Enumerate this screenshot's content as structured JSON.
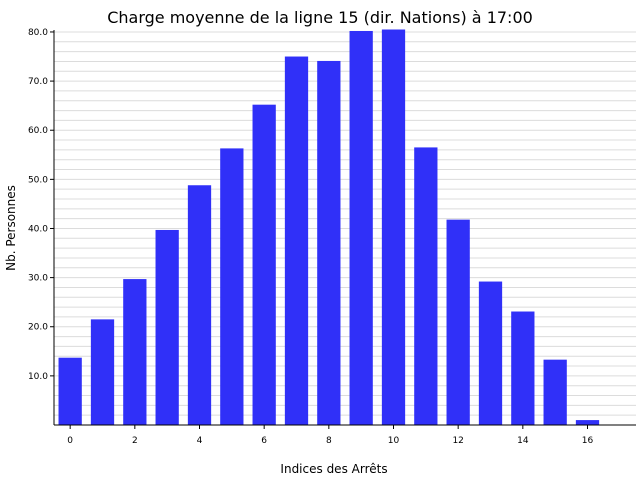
{
  "chart_data": {
    "type": "bar",
    "title": "Charge moyenne de la ligne 15 (dir. Nations) à 17:00",
    "xlabel": "Indices des Arrêts",
    "ylabel": "Nb. Personnes",
    "x": [
      0,
      1,
      2,
      3,
      4,
      5,
      6,
      7,
      8,
      9,
      10,
      11,
      12,
      13,
      14,
      15,
      16
    ],
    "values": [
      13.7,
      21.5,
      29.7,
      39.7,
      48.8,
      56.3,
      65.2,
      75.0,
      74.1,
      80.2,
      80.5,
      56.5,
      41.8,
      29.2,
      23.1,
      13.3,
      1.0
    ],
    "xticks": [
      "0",
      "2",
      "4",
      "6",
      "8",
      "10",
      "12",
      "14",
      "16"
    ],
    "yticks": [
      "10.0",
      "20.0",
      "30.0",
      "40.0",
      "50.0",
      "60.0",
      "70.0",
      "80.0"
    ],
    "ylim": [
      0,
      80.4
    ],
    "xlim": [
      -0.5,
      17.5
    ],
    "grid": "horizontal minor lines",
    "bar_color": "#3030f8"
  }
}
